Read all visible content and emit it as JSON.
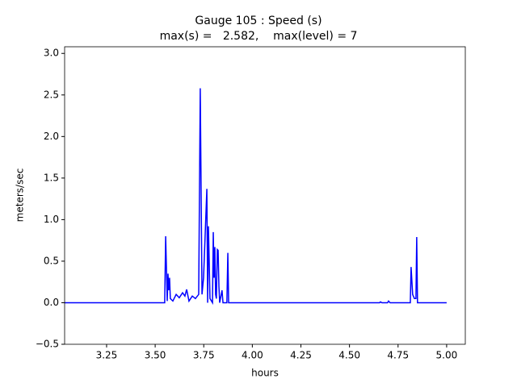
{
  "chart_data": {
    "type": "line",
    "title": [
      "Gauge 105 : Speed (s)",
      "max(s) =   2.582,    max(level) = 7"
    ],
    "xlabel": "hours",
    "ylabel": "meters/sec",
    "xlim": [
      3.034,
      5.096
    ],
    "ylim": [
      -0.5,
      3.08
    ],
    "xticks": [
      3.25,
      {
        "value": 3.5,
        "label": "3.50"
      },
      3.75,
      {
        "value": 4,
        "label": "4.00"
      },
      4.25,
      {
        "value": 4.5,
        "label": "4.50"
      },
      4.75,
      {
        "value": 5,
        "label": "5.00"
      }
    ],
    "yticks": [
      {
        "value": -0.5,
        "label": "−0.5"
      },
      {
        "value": 0,
        "label": "0.0"
      },
      0.5,
      {
        "value": 1,
        "label": "1.0"
      },
      1.5,
      {
        "value": 2,
        "label": "2.0"
      },
      2.5,
      {
        "value": 3,
        "label": "3.0"
      }
    ],
    "series": [
      {
        "color": "#0000ff",
        "x": [
          3.034,
          3.549,
          3.554,
          3.562,
          3.566,
          3.57,
          3.574,
          3.578,
          3.591,
          3.608,
          3.624,
          3.641,
          3.653,
          3.662,
          3.674,
          3.691,
          3.707,
          3.724,
          3.732,
          3.741,
          3.749,
          3.757,
          3.766,
          3.77,
          3.774,
          3.778,
          3.782,
          3.795,
          3.799,
          3.803,
          3.807,
          3.811,
          3.815,
          3.82,
          3.824,
          3.828,
          3.832,
          3.844,
          3.849,
          3.869,
          3.874,
          3.878,
          4.655,
          4.659,
          4.667,
          4.696,
          4.701,
          4.709,
          4.813,
          4.817,
          4.825,
          4.834,
          4.842,
          4.846,
          4.85,
          5.0
        ],
        "values": [
          0,
          0,
          0.8,
          0.02,
          0.35,
          0.15,
          0.3,
          0.05,
          0.02,
          0.1,
          0.06,
          0.12,
          0.08,
          0.16,
          0.02,
          0.08,
          0.05,
          0.1,
          2.58,
          0.1,
          0.3,
          0.8,
          1.37,
          0,
          0.92,
          0.5,
          0.05,
          0,
          0.85,
          0.3,
          0.67,
          0.1,
          0.05,
          0.64,
          0.63,
          0.2,
          0,
          0.15,
          0,
          0,
          0.6,
          0,
          0,
          0.01,
          0,
          0,
          0.02,
          0,
          0,
          0.43,
          0.1,
          0.05,
          0.05,
          0.79,
          0,
          0
        ]
      }
    ]
  }
}
